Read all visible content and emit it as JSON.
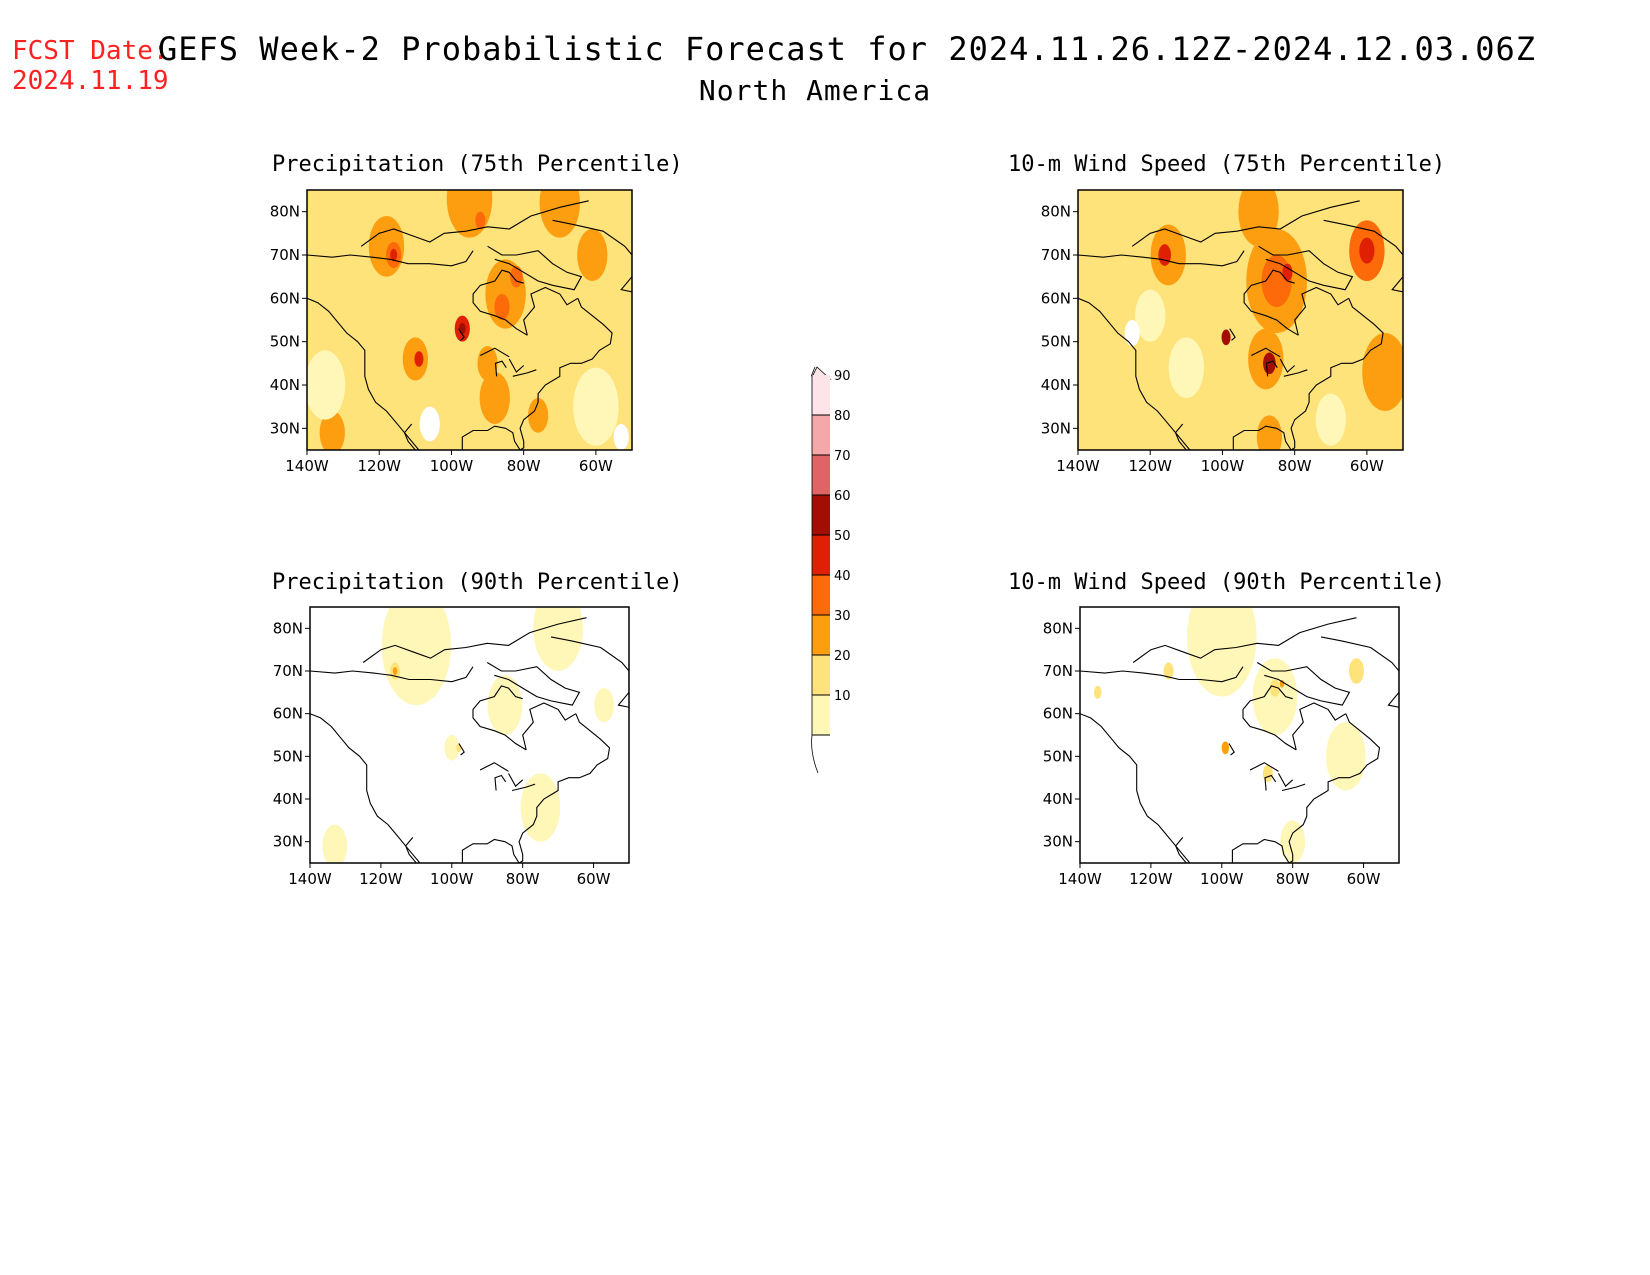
{
  "fcst_date": {
    "label": "FCST Date:",
    "value": "2024.11.19"
  },
  "title": "GEFS Week-2 Probabilistic Forecast for 2024.11.26.12Z-2024.12.03.06Z",
  "subtitle": "North America",
  "axis_labels": {
    "lat": [
      "80N",
      "70N",
      "60N",
      "50N",
      "40N",
      "30N"
    ],
    "lon": [
      "140W",
      "120W",
      "100W",
      "80W",
      "60W"
    ]
  },
  "colors": {
    "10-20": "#fff7b8",
    "20-30": "#fee27a",
    "30-40": "#fd9e11",
    "40-50": "#fc6a0a",
    "50-60": "#e02003",
    "60-70": "#a30d04",
    "70-80": "#e06466",
    "80-90": "#f4a8aa",
    "90+": "#fde4e8"
  },
  "legend": {
    "levels": [
      10,
      20,
      30,
      40,
      50,
      60,
      70,
      80,
      90
    ]
  },
  "panels": [
    {
      "id": "precip75",
      "title": "Precipitation (75th Percentile)",
      "base": "#fee27a",
      "blobs": [
        {
          "lon": -95,
          "lat": 83,
          "r": 9,
          "c": "#fd9e11"
        },
        {
          "lon": -70,
          "lat": 82,
          "r": 8,
          "c": "#fd9e11"
        },
        {
          "lon": -118,
          "lat": 72,
          "r": 7,
          "c": "#fd9e11"
        },
        {
          "lon": -116,
          "lat": 70,
          "r": 3,
          "c": "#fc6a0a"
        },
        {
          "lon": -116,
          "lat": 70,
          "r": 1.4,
          "c": "#e02003"
        },
        {
          "lon": -92,
          "lat": 78,
          "r": 2,
          "c": "#fc6a0a"
        },
        {
          "lon": -85,
          "lat": 61,
          "r": 8,
          "c": "#fd9e11"
        },
        {
          "lon": -82,
          "lat": 65,
          "r": 2.5,
          "c": "#fc6a0a"
        },
        {
          "lon": -86,
          "lat": 58,
          "r": 3,
          "c": "#fc6a0a"
        },
        {
          "lon": -60,
          "lat": 70,
          "r": 4,
          "c": "#fc6a0a"
        },
        {
          "lon": -61,
          "lat": 70,
          "r": 6,
          "c": "#fd9e11"
        },
        {
          "lon": -110,
          "lat": 46,
          "r": 5,
          "c": "#fd9e11"
        },
        {
          "lon": -109,
          "lat": 46,
          "r": 1.8,
          "c": "#e02003"
        },
        {
          "lon": -97,
          "lat": 53,
          "r": 3,
          "c": "#e02003"
        },
        {
          "lon": -97,
          "lat": 53,
          "r": 1.3,
          "c": "#a30d04"
        },
        {
          "lon": -90,
          "lat": 45,
          "r": 4,
          "c": "#fd9e11"
        },
        {
          "lon": -88,
          "lat": 37,
          "r": 6,
          "c": "#fd9e11"
        },
        {
          "lon": -133,
          "lat": 29,
          "r": 5,
          "c": "#fd9e11"
        },
        {
          "lon": -76,
          "lat": 33,
          "r": 4,
          "c": "#fd9e11"
        },
        {
          "lon": -106,
          "lat": 31,
          "r": 4,
          "c": "#ffffff"
        },
        {
          "lon": -53,
          "lat": 28,
          "r": 3,
          "c": "#ffffff"
        },
        {
          "lon": -135,
          "lat": 40,
          "r": 8,
          "c": "#fff7b8"
        },
        {
          "lon": -60,
          "lat": 35,
          "r": 9,
          "c": "#fff7b8"
        }
      ]
    },
    {
      "id": "wind75",
      "title": "10-m Wind Speed (75th Percentile)",
      "base": "#fee27a",
      "blobs": [
        {
          "lon": -85,
          "lat": 64,
          "r": 12,
          "c": "#fd9e11"
        },
        {
          "lon": -85,
          "lat": 64,
          "r": 6,
          "c": "#fc6a0a"
        },
        {
          "lon": -82,
          "lat": 66,
          "r": 2,
          "c": "#e02003"
        },
        {
          "lon": -60,
          "lat": 71,
          "r": 7,
          "c": "#fc6a0a"
        },
        {
          "lon": -60,
          "lat": 71,
          "r": 3,
          "c": "#e02003"
        },
        {
          "lon": -115,
          "lat": 70,
          "r": 7,
          "c": "#fd9e11"
        },
        {
          "lon": -116,
          "lat": 70,
          "r": 2.5,
          "c": "#e02003"
        },
        {
          "lon": -90,
          "lat": 80,
          "r": 8,
          "c": "#fd9e11"
        },
        {
          "lon": -88,
          "lat": 46,
          "r": 7,
          "c": "#fd9e11"
        },
        {
          "lon": -87,
          "lat": 45,
          "r": 2.5,
          "c": "#a30d04"
        },
        {
          "lon": -99,
          "lat": 51,
          "r": 1.8,
          "c": "#a30d04"
        },
        {
          "lon": -55,
          "lat": 43,
          "r": 9,
          "c": "#fd9e11"
        },
        {
          "lon": -120,
          "lat": 56,
          "r": 6,
          "c": "#fff7b8"
        },
        {
          "lon": -110,
          "lat": 44,
          "r": 7,
          "c": "#fff7b8"
        },
        {
          "lon": -125,
          "lat": 52,
          "r": 3,
          "c": "#ffffff"
        },
        {
          "lon": -87,
          "lat": 28,
          "r": 5,
          "c": "#fd9e11"
        },
        {
          "lon": -70,
          "lat": 32,
          "r": 6,
          "c": "#fff7b8"
        }
      ]
    },
    {
      "id": "precip90",
      "title": "Precipitation (90th Percentile)",
      "base": "#ffffff",
      "blobs": [
        {
          "lon": -110,
          "lat": 76,
          "r": 14,
          "c": "#fff7b8"
        },
        {
          "lon": -70,
          "lat": 80,
          "r": 10,
          "c": "#fff7b8"
        },
        {
          "lon": -85,
          "lat": 62,
          "r": 7,
          "c": "#fff7b8"
        },
        {
          "lon": -116,
          "lat": 70,
          "r": 2,
          "c": "#fee27a"
        },
        {
          "lon": -116,
          "lat": 70,
          "r": 0.9,
          "c": "#fd9e11"
        },
        {
          "lon": -75,
          "lat": 38,
          "r": 8,
          "c": "#fff7b8"
        },
        {
          "lon": -133,
          "lat": 29,
          "r": 5,
          "c": "#fff7b8"
        },
        {
          "lon": -100,
          "lat": 52,
          "r": 3,
          "c": "#fff7b8"
        },
        {
          "lon": -98,
          "lat": 52,
          "r": 1,
          "c": "#fee27a"
        },
        {
          "lon": -57,
          "lat": 62,
          "r": 4,
          "c": "#fff7b8"
        }
      ]
    },
    {
      "id": "wind90",
      "title": "10-m Wind Speed (90th Percentile)",
      "base": "#ffffff",
      "blobs": [
        {
          "lon": -100,
          "lat": 78,
          "r": 14,
          "c": "#fff7b8"
        },
        {
          "lon": -85,
          "lat": 64,
          "r": 9,
          "c": "#fff7b8"
        },
        {
          "lon": -85,
          "lat": 66,
          "r": 2,
          "c": "#fee27a"
        },
        {
          "lon": -83,
          "lat": 67,
          "r": 0.9,
          "c": "#fd9e11"
        },
        {
          "lon": -62,
          "lat": 70,
          "r": 3,
          "c": "#fee27a"
        },
        {
          "lon": -65,
          "lat": 50,
          "r": 8,
          "c": "#fff7b8"
        },
        {
          "lon": -99,
          "lat": 52,
          "r": 1.5,
          "c": "#fd9e11"
        },
        {
          "lon": -87,
          "lat": 46,
          "r": 2,
          "c": "#fee27a"
        },
        {
          "lon": -135,
          "lat": 65,
          "r": 1.5,
          "c": "#fee27a"
        },
        {
          "lon": -80,
          "lat": 30,
          "r": 5,
          "c": "#fff7b8"
        },
        {
          "lon": -115,
          "lat": 70,
          "r": 2,
          "c": "#fee27a"
        }
      ]
    }
  ]
}
